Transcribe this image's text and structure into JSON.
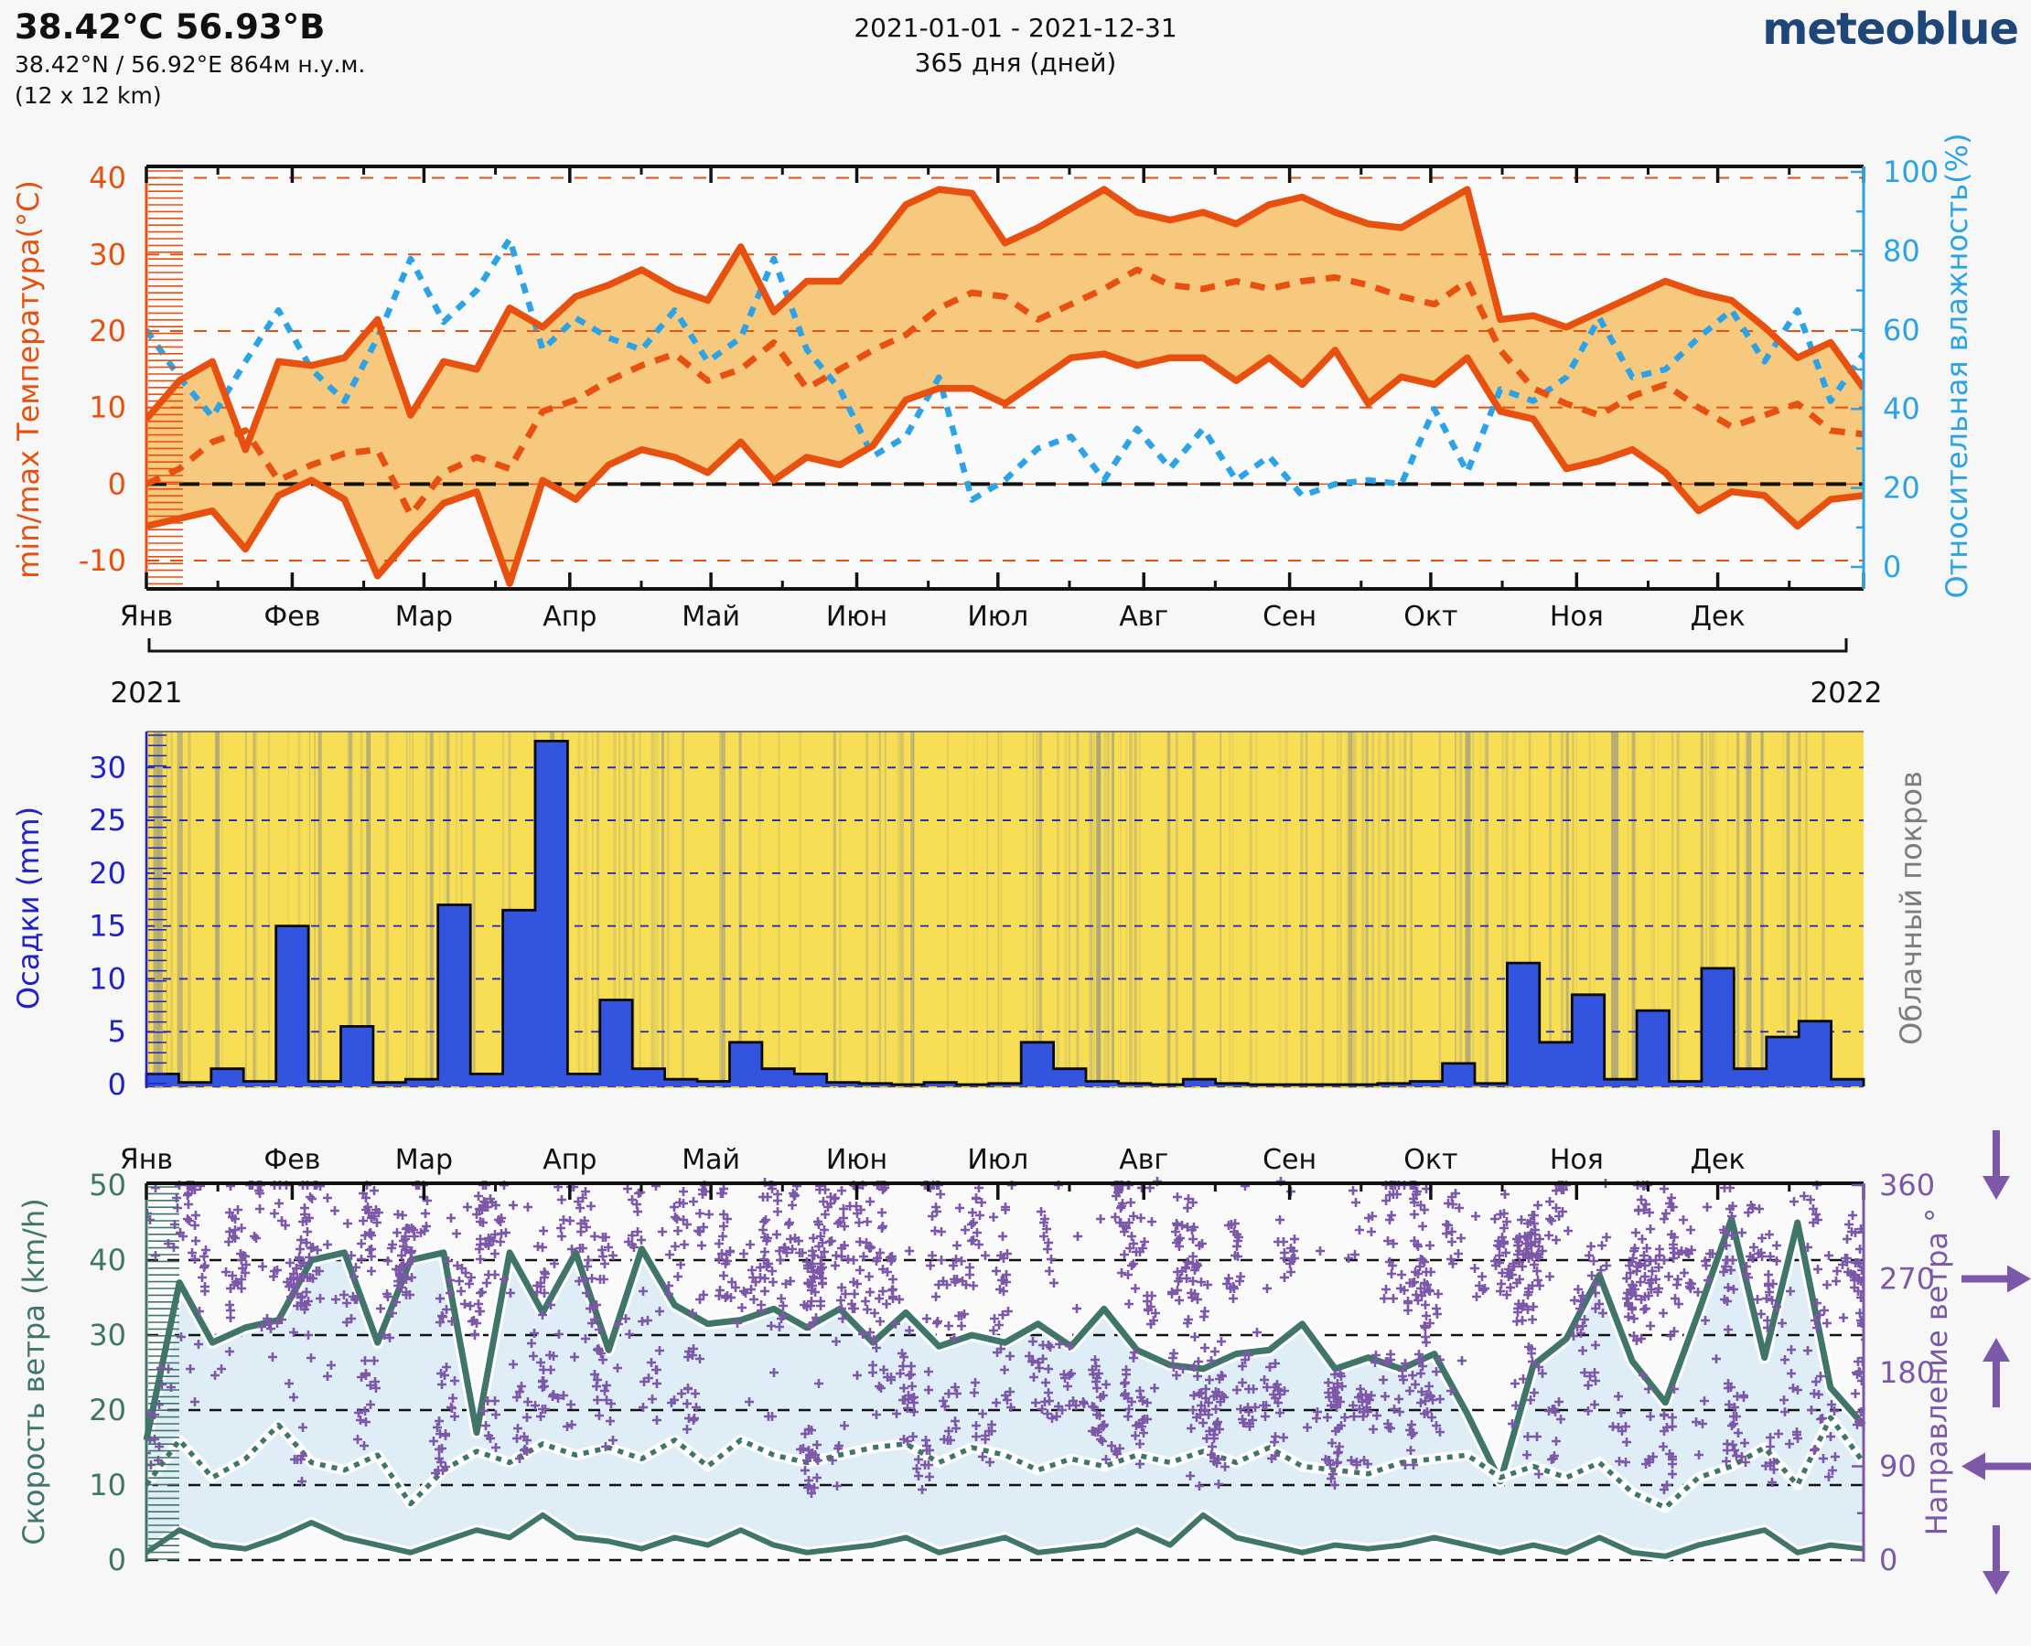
{
  "header": {
    "title": "38.42°C 56.93°В",
    "subtitle": "38.42°N / 56.92°E   864м н.у.м.",
    "resolution": "(12 x 12 km)",
    "period": "2021-01-01 - 2021-12-31",
    "days": "365 дня (дней)",
    "logo": "meteoblue"
  },
  "months": {
    "labels": [
      "Янв",
      "Фев",
      "Мар",
      "Апр",
      "Май",
      "Июн",
      "Июл",
      "Авг",
      "Сен",
      "Окт",
      "Ноя",
      "Дек"
    ],
    "start_days": [
      0,
      31,
      59,
      90,
      120,
      151,
      181,
      212,
      243,
      273,
      304,
      334
    ],
    "year_days": 365
  },
  "years": {
    "start": "2021",
    "end": "2022"
  },
  "colors": {
    "page_bg": "#f7f7f7",
    "plot_bg": "#fafafa",
    "temp_line": "#e8500f",
    "temp_band": "#f6c97e",
    "temp_grid": "#e8500f",
    "zero_line": "#111111",
    "humidity": "#2ba3e6",
    "precip_bar": "#3254de",
    "precip_axis": "#2121c8",
    "cloud_bg": "#f7de55",
    "cloud_stripe": "#8a8a8a",
    "cloud_label": "#7d7d7d",
    "wind_line": "#40756a",
    "wind_band": "#dfedf6",
    "wind_grid": "#111111",
    "direction": "#7d58a8",
    "month_text": "#111111",
    "logo_blue": "#1e4679"
  },
  "chart_data": [
    {
      "id": "temperature-humidity",
      "type": "area",
      "x_unit": "weekly, Jan 1 – Dec 31 2021",
      "y_left": {
        "label": "min/max Температура(°C)",
        "ticks": [
          40,
          30,
          20,
          10,
          0,
          -10
        ],
        "range": [
          -13.7,
          41.5
        ]
      },
      "y_right": {
        "label": "Относительная влажность(%)",
        "ticks": [
          0,
          20,
          40,
          60,
          80,
          100
        ],
        "range": [
          0,
          100
        ]
      },
      "grid": {
        "dashed_orange_at": [
          40,
          30,
          20,
          10,
          -10
        ],
        "zero_line": "black-dashed over thin orange solid"
      },
      "series": [
        {
          "name": "tmax_c",
          "style": "solid-thick",
          "values": [
            8.5,
            13.5,
            16,
            4.5,
            16,
            15.5,
            16.5,
            21.5,
            9,
            16,
            15,
            23,
            20.5,
            24.5,
            26,
            28,
            25.5,
            24,
            31,
            22.5,
            26.5,
            26.5,
            31,
            36.5,
            38.5,
            38,
            31.5,
            33.5,
            36,
            38.5,
            35.5,
            34.5,
            35.5,
            34,
            36.5,
            37.5,
            35.5,
            34,
            33.5,
            36,
            38.5,
            21.5,
            22,
            20.5,
            22.5,
            24.5,
            26.5,
            25,
            24,
            20.5,
            16.5,
            18.5,
            12.5
          ]
        },
        {
          "name": "tmean_c",
          "style": "dashed",
          "values": [
            0,
            2,
            5.5,
            7,
            0.5,
            2.5,
            4,
            4.5,
            -4,
            1.5,
            3.5,
            2,
            9.5,
            11,
            13.5,
            15.5,
            17,
            13.5,
            15,
            18.5,
            12.5,
            15,
            17.5,
            19.5,
            23,
            25,
            24.5,
            21.5,
            23.5,
            25.5,
            28,
            26,
            25.5,
            26.5,
            25.5,
            26.5,
            27,
            26,
            24.5,
            23.5,
            26.5,
            17.5,
            12.5,
            10.5,
            9,
            11.5,
            13,
            10,
            7.5,
            9,
            10.5,
            7,
            6.5
          ]
        },
        {
          "name": "tmin_c",
          "style": "solid-thick",
          "values": [
            -5.5,
            -4.5,
            -3.5,
            -8.5,
            -1.5,
            0.5,
            -2,
            -12,
            -7,
            -2.5,
            -1,
            -13,
            0.5,
            -2,
            2.5,
            4.5,
            3.5,
            1.5,
            5.5,
            0.5,
            3.5,
            2.5,
            5,
            11,
            12.5,
            12.5,
            10.5,
            13.5,
            16.5,
            17,
            15.5,
            16.5,
            16.5,
            13.5,
            16.5,
            13,
            17.5,
            10.5,
            14,
            13,
            16.5,
            9.5,
            8.5,
            2,
            3,
            4.5,
            1.5,
            -3.5,
            -1,
            -1.5,
            -5.5,
            -2,
            -1.5
          ]
        },
        {
          "name": "relative_humidity_pct",
          "style": "dashed-blue",
          "values": [
            60,
            48,
            38,
            52,
            65,
            50,
            42,
            58,
            78,
            62,
            70,
            83,
            55,
            63,
            58,
            55,
            65,
            52,
            58,
            78,
            55,
            45,
            28,
            33,
            48,
            17,
            22,
            30,
            33,
            22,
            35,
            25,
            35,
            22,
            28,
            18,
            21,
            22,
            21,
            40,
            24,
            45,
            42,
            48,
            63,
            48,
            50,
            58,
            65,
            52,
            65,
            42,
            54
          ]
        }
      ]
    },
    {
      "id": "precipitation-cloudcover",
      "type": "bar",
      "x_unit": "weekly, Jan 1 – Dec 31 2021",
      "y_left": {
        "label": "Осадки (mm)",
        "ticks": [
          30,
          25,
          20,
          15,
          10,
          5,
          0
        ],
        "range": [
          0,
          33.4
        ]
      },
      "y_right_label": "Облачный покров",
      "series": [
        {
          "name": "precip_mm",
          "values": [
            1,
            0.2,
            1.5,
            0.3,
            15,
            0.3,
            5.5,
            0.2,
            0.5,
            17,
            1,
            16.5,
            32.5,
            1,
            8,
            1.5,
            0.5,
            0.3,
            4,
            1.5,
            1,
            0.2,
            0.1,
            0,
            0.2,
            0,
            0.1,
            4,
            1.5,
            0.3,
            0.1,
            0,
            0.5,
            0.1,
            0,
            0,
            0,
            0,
            0.1,
            0.3,
            2,
            0.1,
            11.5,
            4,
            8.5,
            0.5,
            7,
            0.3,
            11,
            1.5,
            4.5,
            6,
            0.5
          ]
        }
      ],
      "cloud_cover": {
        "style": "vertical gray stripes over yellow = cloudy periods",
        "seed": 7,
        "thin_stripe_count": 170,
        "prominent_stripes": [
          [
            0.004,
            10,
            0.55
          ],
          [
            0.018,
            6,
            0.5
          ],
          [
            0.04,
            5,
            0.6
          ],
          [
            0.062,
            3,
            0.45
          ],
          [
            0.1,
            4,
            0.5
          ],
          [
            0.118,
            3,
            0.5
          ],
          [
            0.128,
            5,
            0.55
          ],
          [
            0.165,
            4,
            0.5
          ],
          [
            0.175,
            3,
            0.45
          ],
          [
            0.19,
            3,
            0.4
          ],
          [
            0.235,
            5,
            0.5
          ],
          [
            0.3,
            3,
            0.45
          ],
          [
            0.335,
            4,
            0.5
          ],
          [
            0.345,
            3,
            0.5
          ],
          [
            0.4,
            3,
            0.4
          ],
          [
            0.445,
            4,
            0.45
          ],
          [
            0.52,
            3,
            0.4
          ],
          [
            0.553,
            5,
            0.55
          ],
          [
            0.562,
            3,
            0.45
          ],
          [
            0.625,
            2,
            0.35
          ],
          [
            0.7,
            4,
            0.5
          ],
          [
            0.71,
            3,
            0.45
          ],
          [
            0.768,
            6,
            0.6
          ],
          [
            0.78,
            3,
            0.45
          ],
          [
            0.853,
            8,
            0.6
          ],
          [
            0.865,
            4,
            0.5
          ],
          [
            0.905,
            3,
            0.4
          ],
          [
            0.932,
            5,
            0.55
          ],
          [
            0.94,
            3,
            0.45
          ],
          [
            0.955,
            4,
            0.5
          ]
        ]
      }
    },
    {
      "id": "wind",
      "type": "line+scatter",
      "x_unit": "weekly, Jan 1 – Dec 31 2021",
      "y_left": {
        "label": "Скорость ветра (km/h)",
        "ticks": [
          50,
          40,
          30,
          20,
          10,
          0
        ],
        "range": [
          -4.5,
          50
        ]
      },
      "y_right": {
        "label": "Направление ветра °",
        "ticks": [
          360,
          270,
          180,
          90,
          0
        ],
        "range": [
          0,
          360
        ],
        "arrows": [
          {
            "at": 360,
            "dir": "down"
          },
          {
            "at": 270,
            "dir": "right"
          },
          {
            "at": 180,
            "dir": "up"
          },
          {
            "at": 90,
            "dir": "left"
          },
          {
            "at": 0,
            "dir": "down"
          }
        ]
      },
      "series": [
        {
          "name": "wind_max_kmh",
          "style": "solid-thick",
          "values": [
            16,
            37,
            29,
            31,
            32,
            40,
            41,
            29,
            40,
            41,
            17,
            41,
            33,
            41,
            28,
            41.5,
            34,
            31.5,
            32,
            33.5,
            31,
            33.5,
            29,
            33,
            28.5,
            30,
            29,
            31.5,
            28.5,
            33.5,
            28,
            26,
            25.5,
            27.5,
            28,
            31.5,
            25.5,
            27,
            25.5,
            27.5,
            19.5,
            10.5,
            26,
            29.5,
            38,
            26.5,
            21,
            33,
            45.5,
            27,
            45,
            23,
            18
          ]
        },
        {
          "name": "wind_mean_kmh",
          "style": "dotted",
          "values": [
            10,
            16,
            11,
            13.5,
            18,
            13,
            12,
            14,
            7.5,
            12,
            14.5,
            13,
            15.5,
            14,
            15,
            13.5,
            16,
            12.5,
            16,
            14,
            13,
            14,
            15,
            15.5,
            13,
            15,
            14,
            12,
            13.5,
            12.5,
            14,
            13,
            14.5,
            13,
            15,
            12.5,
            12,
            11.5,
            13,
            13.5,
            14,
            11,
            12.5,
            11,
            13,
            9,
            7,
            11,
            12.5,
            15,
            10,
            19,
            13
          ]
        },
        {
          "name": "wind_min_kmh",
          "style": "solid",
          "values": [
            1,
            4,
            2,
            1.5,
            3,
            5,
            3,
            2,
            1,
            2.5,
            4,
            3,
            6,
            3,
            2.5,
            1.5,
            3,
            2,
            4,
            2,
            1,
            1.5,
            2,
            3,
            1,
            2,
            3,
            1,
            1.5,
            2,
            4,
            2,
            6,
            3,
            2,
            1,
            2,
            1.5,
            2,
            3,
            2,
            1,
            2,
            1,
            3,
            1,
            0.5,
            2,
            3,
            4,
            1,
            2,
            1.5
          ]
        }
      ],
      "direction_scatter": {
        "marker": "plus",
        "seed": 20210101,
        "columns": 240,
        "extra_points": 220,
        "distribution": "daily/hourly wind direction in degrees; dense vertical clusters, mostly 80–200 and 240–360"
      }
    }
  ]
}
